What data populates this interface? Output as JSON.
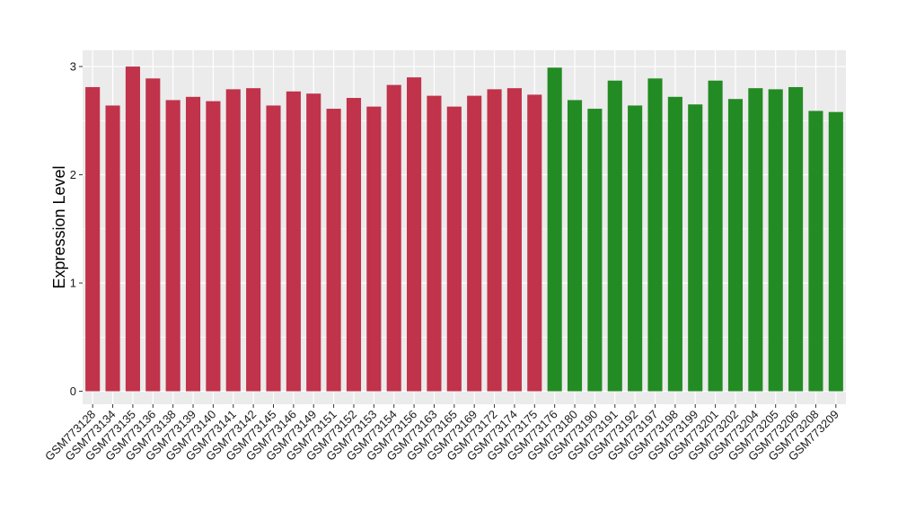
{
  "chart_data": {
    "type": "bar",
    "title": "",
    "xlabel": "",
    "ylabel": "Expression Level",
    "ylim": [
      -0.12,
      3.15
    ],
    "yticks": [
      0,
      1,
      2,
      3
    ],
    "grid": true,
    "legend": "none",
    "categories": [
      "GSM773128",
      "GSM773134",
      "GSM773135",
      "GSM773136",
      "GSM773138",
      "GSM773139",
      "GSM773140",
      "GSM773141",
      "GSM773142",
      "GSM773145",
      "GSM773146",
      "GSM773149",
      "GSM773151",
      "GSM773152",
      "GSM773153",
      "GSM773154",
      "GSM773156",
      "GSM773163",
      "GSM773165",
      "GSM773169",
      "GSM773172",
      "GSM773174",
      "GSM773175",
      "GSM773176",
      "GSM773180",
      "GSM773190",
      "GSM773191",
      "GSM773192",
      "GSM773197",
      "GSM773198",
      "GSM773199",
      "GSM773201",
      "GSM773202",
      "GSM773204",
      "GSM773205",
      "GSM773206",
      "GSM773208",
      "GSM773209"
    ],
    "values": [
      2.81,
      2.64,
      3.0,
      2.89,
      2.69,
      2.72,
      2.68,
      2.79,
      2.8,
      2.64,
      2.77,
      2.75,
      2.61,
      2.71,
      2.63,
      2.83,
      2.9,
      2.73,
      2.63,
      2.73,
      2.79,
      2.8,
      2.74,
      2.99,
      2.69,
      2.61,
      2.87,
      2.64,
      2.89,
      2.72,
      2.65,
      2.87,
      2.7,
      2.8,
      2.79,
      2.81,
      2.59,
      2.58
    ],
    "group_colors": [
      "#c0334a",
      "#238b23"
    ],
    "groups": [
      0,
      0,
      0,
      0,
      0,
      0,
      0,
      0,
      0,
      0,
      0,
      0,
      0,
      0,
      0,
      0,
      0,
      0,
      0,
      0,
      0,
      0,
      0,
      1,
      1,
      1,
      1,
      1,
      1,
      1,
      1,
      1,
      1,
      1,
      1,
      1,
      1,
      1
    ],
    "panel_background": "#ebebeb",
    "gridline_color": "#ffffff"
  }
}
